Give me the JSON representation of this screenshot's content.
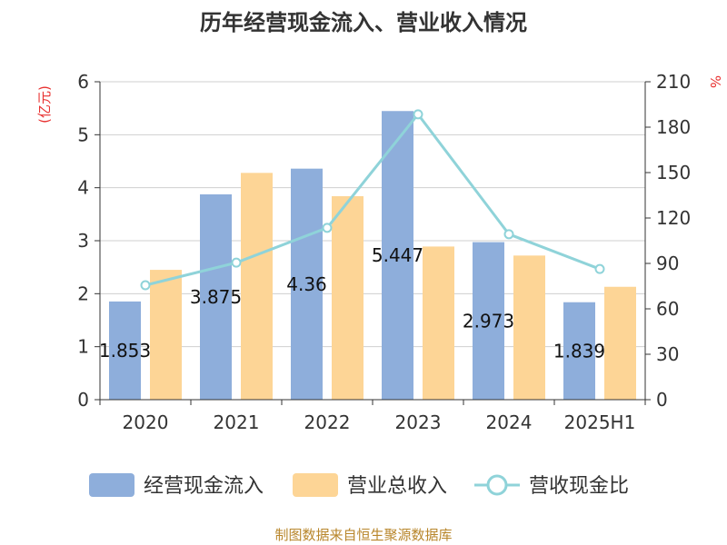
{
  "chart_data": {
    "type": "bar",
    "title": "历年经营现金流入、营业收入情况",
    "categories": [
      "2020",
      "2021",
      "2022",
      "2023",
      "2024",
      "2025H1"
    ],
    "series": [
      {
        "name": "经营现金流入",
        "type": "bar",
        "axis": "left",
        "color": "#8eaedb",
        "values": [
          1.853,
          3.875,
          4.36,
          5.447,
          2.973,
          1.839
        ],
        "labels": [
          "1.853",
          "3.875",
          "4.36",
          "5.447",
          "2.973",
          "1.839"
        ]
      },
      {
        "name": "营业总收入",
        "type": "bar",
        "axis": "left",
        "color": "#fdd596",
        "values": [
          2.45,
          4.28,
          3.84,
          2.89,
          2.72,
          2.13
        ]
      },
      {
        "name": "营收现金比",
        "type": "line",
        "axis": "right",
        "color": "#8fd3d9",
        "values": [
          75.6,
          90.5,
          113.5,
          188.5,
          109.3,
          86.3
        ]
      }
    ],
    "y_left": {
      "unit": "(亿元)",
      "min": 0,
      "max": 6,
      "ticks": [
        "0",
        "1",
        "2",
        "3",
        "4",
        "5",
        "6"
      ]
    },
    "y_right": {
      "unit": "%",
      "min": 0,
      "max": 210,
      "ticks": [
        "0",
        "30",
        "60",
        "90",
        "120",
        "150",
        "180",
        "210"
      ]
    },
    "grid": true,
    "legend_position": "bottom"
  },
  "source": "制图数据来自恒生聚源数据库"
}
